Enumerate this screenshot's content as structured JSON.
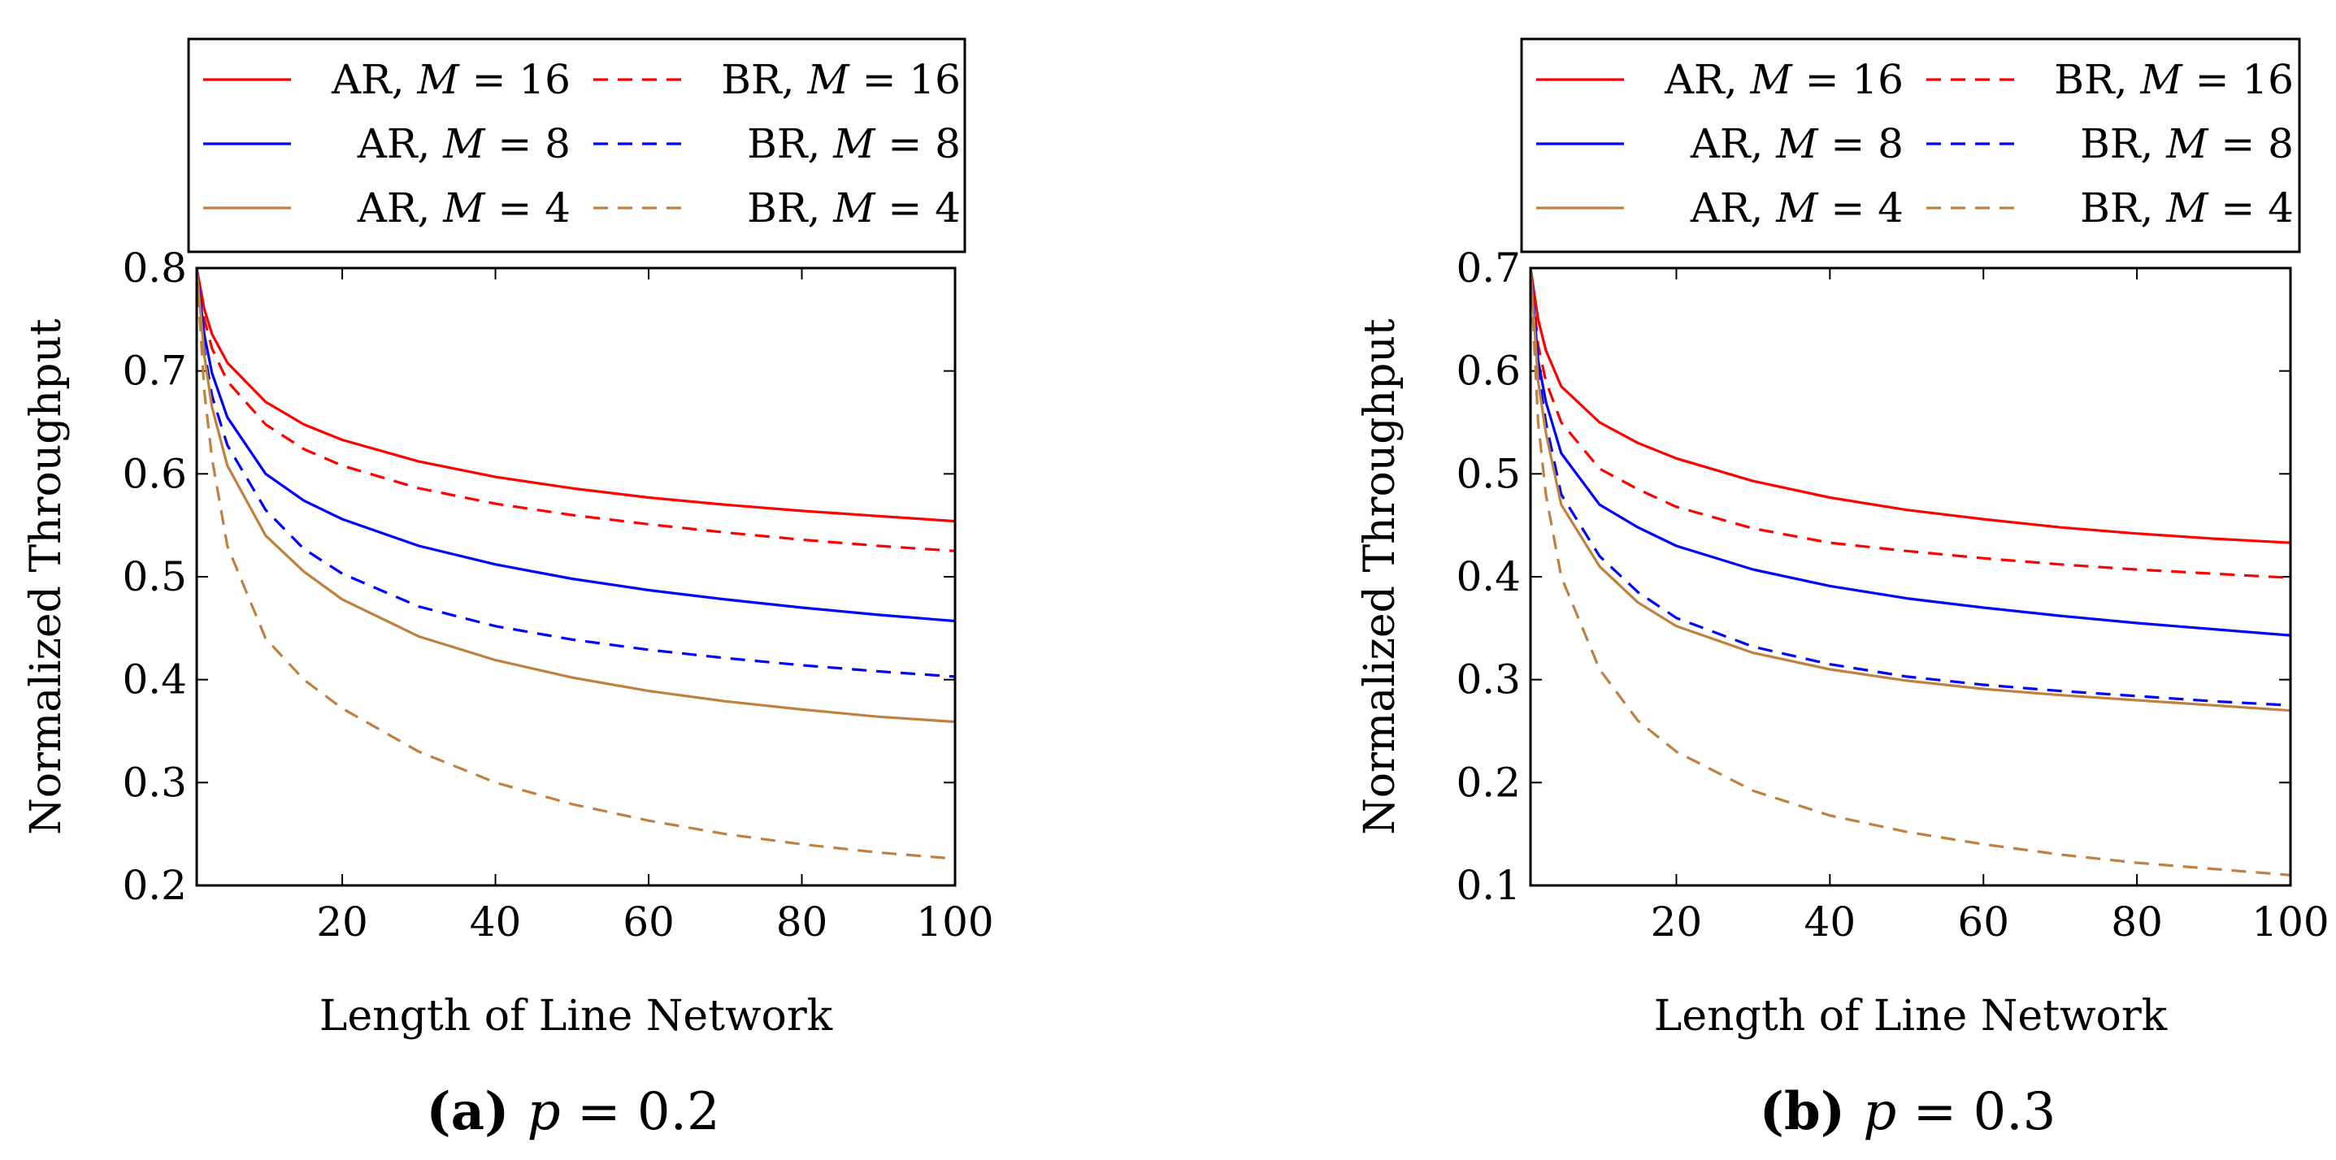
{
  "chart_data": [
    {
      "type": "line",
      "caption_label": "(a)",
      "caption_param": "p",
      "caption_value": "= 0.2",
      "xlabel": "Length of Line Network",
      "ylabel": "Normalized Throughput",
      "xlim": [
        1,
        100
      ],
      "ylim": [
        0.2,
        0.8
      ],
      "xticks": [
        20,
        40,
        60,
        80,
        100
      ],
      "yticks": [
        0.2,
        0.3,
        0.4,
        0.5,
        0.6,
        0.7,
        0.8
      ],
      "legend": "top, outside, 3 rows x 2 columns",
      "x": [
        1,
        2,
        3,
        5,
        10,
        15,
        20,
        30,
        40,
        50,
        60,
        70,
        80,
        90,
        100
      ],
      "series": [
        {
          "name": "AR, M = 16",
          "label_prefix": "AR,",
          "label_var": "M",
          "label_value": "= 16",
          "color": "#ff0000",
          "dash": "solid",
          "values": [
            0.8,
            0.76,
            0.736,
            0.708,
            0.67,
            0.648,
            0.633,
            0.612,
            0.597,
            0.586,
            0.577,
            0.57,
            0.564,
            0.559,
            0.554
          ]
        },
        {
          "name": "BR, M = 16",
          "label_prefix": "BR,",
          "label_var": "M",
          "label_value": "= 16",
          "color": "#ff0000",
          "dash": "dashed",
          "values": [
            0.8,
            0.75,
            0.722,
            0.69,
            0.648,
            0.624,
            0.608,
            0.586,
            0.571,
            0.56,
            0.551,
            0.543,
            0.536,
            0.53,
            0.525
          ]
        },
        {
          "name": "AR, M = 8",
          "label_prefix": "AR,",
          "label_var": "M",
          "label_value": "= 8",
          "color": "#0000ff",
          "dash": "solid",
          "values": [
            0.8,
            0.735,
            0.698,
            0.655,
            0.6,
            0.574,
            0.556,
            0.53,
            0.512,
            0.498,
            0.487,
            0.478,
            0.47,
            0.463,
            0.457
          ]
        },
        {
          "name": "BR, M = 8",
          "label_prefix": "BR,",
          "label_var": "M",
          "label_value": "= 8",
          "color": "#0000ff",
          "dash": "dashed",
          "values": [
            0.8,
            0.72,
            0.676,
            0.628,
            0.565,
            0.527,
            0.503,
            0.471,
            0.452,
            0.439,
            0.429,
            0.421,
            0.414,
            0.408,
            0.403
          ]
        },
        {
          "name": "AR, M = 4",
          "label_prefix": "AR,",
          "label_var": "M",
          "label_value": "= 4",
          "color": "#bf8040",
          "dash": "solid",
          "values": [
            0.8,
            0.715,
            0.665,
            0.608,
            0.54,
            0.505,
            0.478,
            0.442,
            0.419,
            0.402,
            0.389,
            0.379,
            0.371,
            0.364,
            0.359
          ]
        },
        {
          "name": "BR, M = 4",
          "label_prefix": "BR,",
          "label_var": "M",
          "label_value": "= 4",
          "color": "#bf8040",
          "dash": "dashed",
          "values": [
            0.8,
            0.68,
            0.615,
            0.53,
            0.44,
            0.4,
            0.372,
            0.33,
            0.3,
            0.279,
            0.263,
            0.25,
            0.24,
            0.232,
            0.226
          ]
        }
      ]
    },
    {
      "type": "line",
      "caption_label": "(b)",
      "caption_param": "p",
      "caption_value": "= 0.3",
      "xlabel": "Length of Line Network",
      "ylabel": "Normalized Throughput",
      "xlim": [
        1,
        100
      ],
      "ylim": [
        0.1,
        0.7
      ],
      "xticks": [
        20,
        40,
        60,
        80,
        100
      ],
      "yticks": [
        0.1,
        0.2,
        0.3,
        0.4,
        0.5,
        0.6,
        0.7
      ],
      "legend": "top, outside, 3 rows x 2 columns",
      "x": [
        1,
        2,
        3,
        5,
        10,
        15,
        20,
        30,
        40,
        50,
        60,
        70,
        80,
        90,
        100
      ],
      "series": [
        {
          "name": "AR, M = 16",
          "label_prefix": "AR,",
          "label_var": "M",
          "label_value": "= 16",
          "color": "#ff0000",
          "dash": "solid",
          "values": [
            0.7,
            0.65,
            0.62,
            0.585,
            0.55,
            0.53,
            0.515,
            0.493,
            0.477,
            0.465,
            0.456,
            0.448,
            0.442,
            0.437,
            0.433
          ]
        },
        {
          "name": "BR, M = 16",
          "label_prefix": "BR,",
          "label_var": "M",
          "label_value": "= 16",
          "color": "#ff0000",
          "dash": "dashed",
          "values": [
            0.7,
            0.625,
            0.59,
            0.55,
            0.505,
            0.485,
            0.468,
            0.447,
            0.433,
            0.425,
            0.418,
            0.412,
            0.407,
            0.403,
            0.399
          ]
        },
        {
          "name": "AR, M = 8",
          "label_prefix": "AR,",
          "label_var": "M",
          "label_value": "= 8",
          "color": "#0000ff",
          "dash": "solid",
          "values": [
            0.7,
            0.61,
            0.57,
            0.52,
            0.47,
            0.448,
            0.43,
            0.407,
            0.391,
            0.379,
            0.37,
            0.362,
            0.355,
            0.349,
            0.343
          ]
        },
        {
          "name": "BR, M = 8",
          "label_prefix": "BR,",
          "label_var": "M",
          "label_value": "= 8",
          "color": "#0000ff",
          "dash": "dashed",
          "values": [
            0.7,
            0.6,
            0.55,
            0.48,
            0.42,
            0.385,
            0.36,
            0.332,
            0.315,
            0.303,
            0.295,
            0.289,
            0.284,
            0.279,
            0.275
          ]
        },
        {
          "name": "AR, M = 4",
          "label_prefix": "AR,",
          "label_var": "M",
          "label_value": "= 4",
          "color": "#bf8040",
          "dash": "solid",
          "values": [
            0.7,
            0.59,
            0.54,
            0.47,
            0.41,
            0.375,
            0.352,
            0.326,
            0.31,
            0.299,
            0.291,
            0.285,
            0.28,
            0.275,
            0.27
          ]
        },
        {
          "name": "BR, M = 4",
          "label_prefix": "BR,",
          "label_var": "M",
          "label_value": "= 4",
          "color": "#bf8040",
          "dash": "dashed",
          "values": [
            0.7,
            0.55,
            0.48,
            0.4,
            0.31,
            0.26,
            0.23,
            0.192,
            0.168,
            0.152,
            0.14,
            0.13,
            0.122,
            0.116,
            0.11
          ]
        }
      ]
    }
  ]
}
